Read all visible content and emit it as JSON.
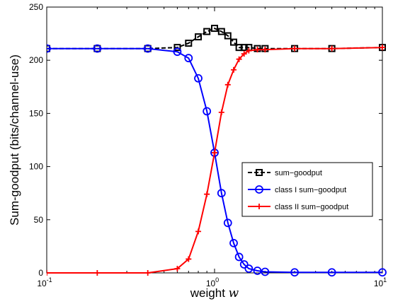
{
  "chart_data": {
    "type": "line",
    "xscale": "log",
    "xlim": [
      0.1,
      10
    ],
    "ylim": [
      0,
      250
    ],
    "xlabel": "weight",
    "xlabel_var": "w",
    "ylabel": "Sum-goodput (bits/channel-use)",
    "x_ticks": [
      {
        "value": 0.1,
        "base": "10",
        "exp": "-1"
      },
      {
        "value": 1,
        "base": "10",
        "exp": "0"
      },
      {
        "value": 10,
        "base": "10",
        "exp": "1"
      }
    ],
    "y_ticks": [
      0,
      50,
      100,
      150,
      200,
      250
    ],
    "grid": false,
    "legend_position": "right",
    "series": [
      {
        "name": "sum−goodput",
        "color": "#000000",
        "dash": "6,3",
        "marker": "square",
        "x": [
          0.1,
          0.2,
          0.4,
          0.6,
          0.7,
          0.8,
          0.9,
          1.0,
          1.1,
          1.2,
          1.3,
          1.4,
          1.5,
          1.6,
          1.8,
          2.0,
          3.0,
          5.0,
          10.0
        ],
        "y": [
          211,
          211,
          211,
          212,
          216,
          222,
          227,
          230,
          227,
          223,
          217,
          212,
          212,
          212,
          211,
          211,
          211,
          211,
          212
        ]
      },
      {
        "name": "class I sum−goodput",
        "color": "#0000ff",
        "dash": "",
        "marker": "circle",
        "x": [
          0.1,
          0.2,
          0.4,
          0.6,
          0.7,
          0.8,
          0.9,
          1.0,
          1.1,
          1.2,
          1.3,
          1.4,
          1.5,
          1.6,
          1.8,
          2.0,
          3.0,
          5.0,
          10.0
        ],
        "y": [
          211,
          211,
          211,
          208,
          202,
          183,
          152,
          113,
          75,
          47,
          28,
          15,
          8,
          4,
          2,
          1,
          0.5,
          0.5,
          0.5
        ]
      },
      {
        "name": "class II sum−goodput",
        "color": "#ff0000",
        "dash": "",
        "marker": "plus",
        "x": [
          0.1,
          0.2,
          0.4,
          0.6,
          0.7,
          0.8,
          0.9,
          1.0,
          1.1,
          1.2,
          1.3,
          1.4,
          1.5,
          1.6,
          1.8,
          2.0,
          3.0,
          5.0,
          10.0
        ],
        "y": [
          0,
          0,
          0,
          4,
          13,
          39,
          74,
          113,
          151,
          177,
          191,
          201,
          206,
          209,
          210,
          210,
          211,
          211,
          212
        ]
      }
    ]
  }
}
